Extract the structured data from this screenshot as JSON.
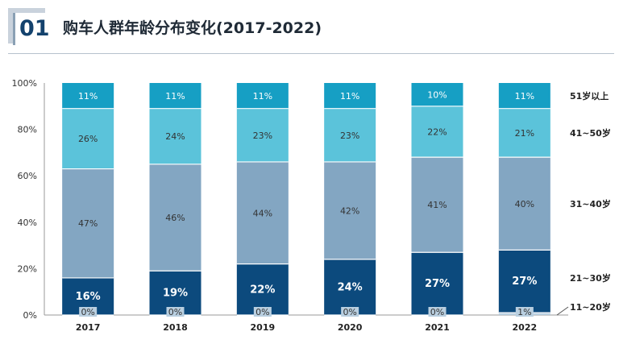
{
  "header": {
    "number": "01",
    "title": "购车人群年龄分布变化(2017-2022)"
  },
  "colors": {
    "accent": "#14426d",
    "rule": "#b6c2cd",
    "segments": [
      "#b9cfe0",
      "#0c4a7d",
      "#83a6c2",
      "#5bc3da",
      "#169fc4"
    ]
  },
  "chart_data": {
    "type": "bar",
    "stacked": true,
    "categories": [
      "2017",
      "2018",
      "2019",
      "2020",
      "2021",
      "2022"
    ],
    "series": [
      {
        "name": "11~20岁",
        "values": [
          0,
          0,
          0,
          0,
          0,
          1
        ],
        "labels": [
          "0%",
          "0%",
          "0%",
          "0%",
          "0%",
          "1%"
        ]
      },
      {
        "name": "21~30岁",
        "values": [
          16,
          19,
          22,
          24,
          27,
          27
        ],
        "labels": [
          "16%",
          "19%",
          "22%",
          "24%",
          "27%",
          "27%"
        ]
      },
      {
        "name": "31~40岁",
        "values": [
          47,
          46,
          44,
          42,
          41,
          40
        ],
        "labels": [
          "47%",
          "46%",
          "44%",
          "42%",
          "41%",
          "40%"
        ]
      },
      {
        "name": "41~50岁",
        "values": [
          26,
          24,
          23,
          23,
          22,
          21
        ],
        "labels": [
          "26%",
          "24%",
          "23%",
          "23%",
          "22%",
          "21%"
        ]
      },
      {
        "name": "51岁以上",
        "values": [
          11,
          11,
          11,
          11,
          10,
          11
        ],
        "labels": [
          "11%",
          "11%",
          "11%",
          "11%",
          "10%",
          "11%"
        ]
      }
    ],
    "ylim": [
      0,
      100
    ],
    "yticks": [
      "0%",
      "20%",
      "40%",
      "60%",
      "80%",
      "100%"
    ],
    "legend": "right"
  }
}
